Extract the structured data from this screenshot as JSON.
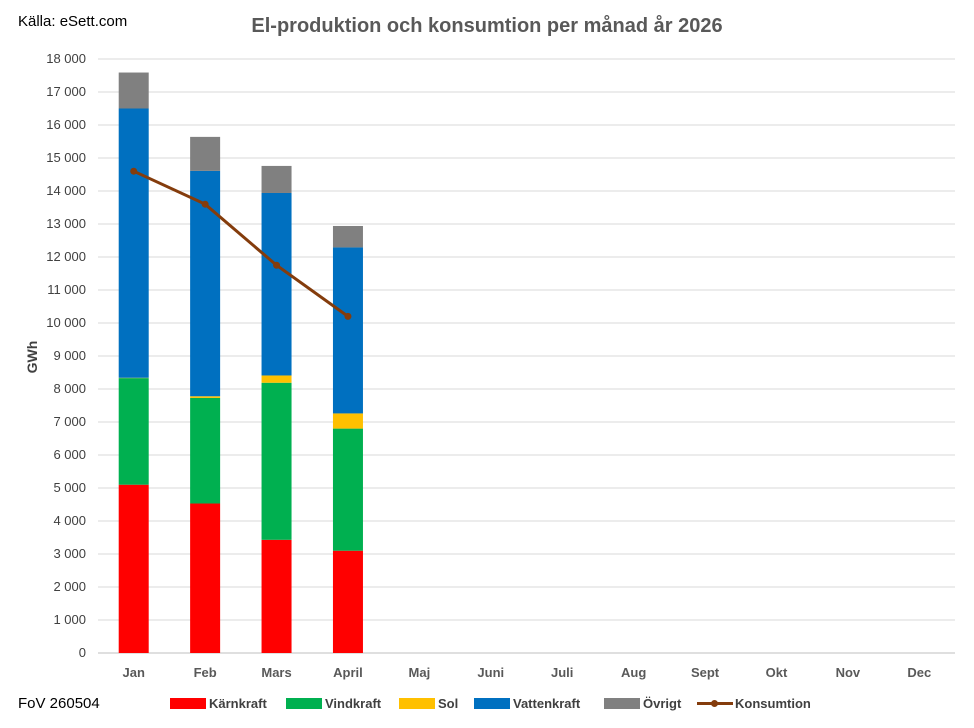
{
  "source_label": "Källa: eSett.com",
  "footnote": "FoV 260504",
  "chart_data": {
    "type": "bar",
    "stacked": true,
    "title": "El-produktion och konsumtion per månad år 2026",
    "ylabel": "GWh",
    "xlabel": "",
    "ylim": [
      0,
      18000
    ],
    "ytick_step": 1000,
    "yticks": [
      "0",
      "1 000",
      "2 000",
      "3 000",
      "4 000",
      "5 000",
      "6 000",
      "7 000",
      "8 000",
      "9 000",
      "10 000",
      "11 000",
      "12 000",
      "13 000",
      "14 000",
      "15 000",
      "16 000",
      "17 000",
      "18 000"
    ],
    "grid": true,
    "legend_position": "bottom",
    "categories": [
      "Jan",
      "Feb",
      "Mars",
      "April",
      "Maj",
      "Juni",
      "Juli",
      "Aug",
      "Sept",
      "Okt",
      "Nov",
      "Dec"
    ],
    "series": [
      {
        "name": "Kärnkraft",
        "color": "#ff0000",
        "values": [
          5100,
          4530,
          3430,
          3100,
          null,
          null,
          null,
          null,
          null,
          null,
          null,
          null
        ]
      },
      {
        "name": "Vindkraft",
        "color": "#00b050",
        "values": [
          3230,
          3200,
          4760,
          3700,
          null,
          null,
          null,
          null,
          null,
          null,
          null,
          null
        ]
      },
      {
        "name": "Sol",
        "color": "#ffc000",
        "values": [
          10,
          50,
          220,
          460,
          null,
          null,
          null,
          null,
          null,
          null,
          null,
          null
        ]
      },
      {
        "name": "Vattenkraft",
        "color": "#0070c0",
        "values": [
          8160,
          6830,
          5530,
          5030,
          null,
          null,
          null,
          null,
          null,
          null,
          null,
          null
        ]
      },
      {
        "name": "Övrigt",
        "color": "#808080",
        "values": [
          1090,
          1030,
          820,
          650,
          null,
          null,
          null,
          null,
          null,
          null,
          null,
          null
        ]
      }
    ],
    "line_series": {
      "name": "Konsumtion",
      "color": "#843c0c",
      "values": [
        14600,
        13600,
        11750,
        10200,
        null,
        null,
        null,
        null,
        null,
        null,
        null,
        null
      ]
    }
  }
}
